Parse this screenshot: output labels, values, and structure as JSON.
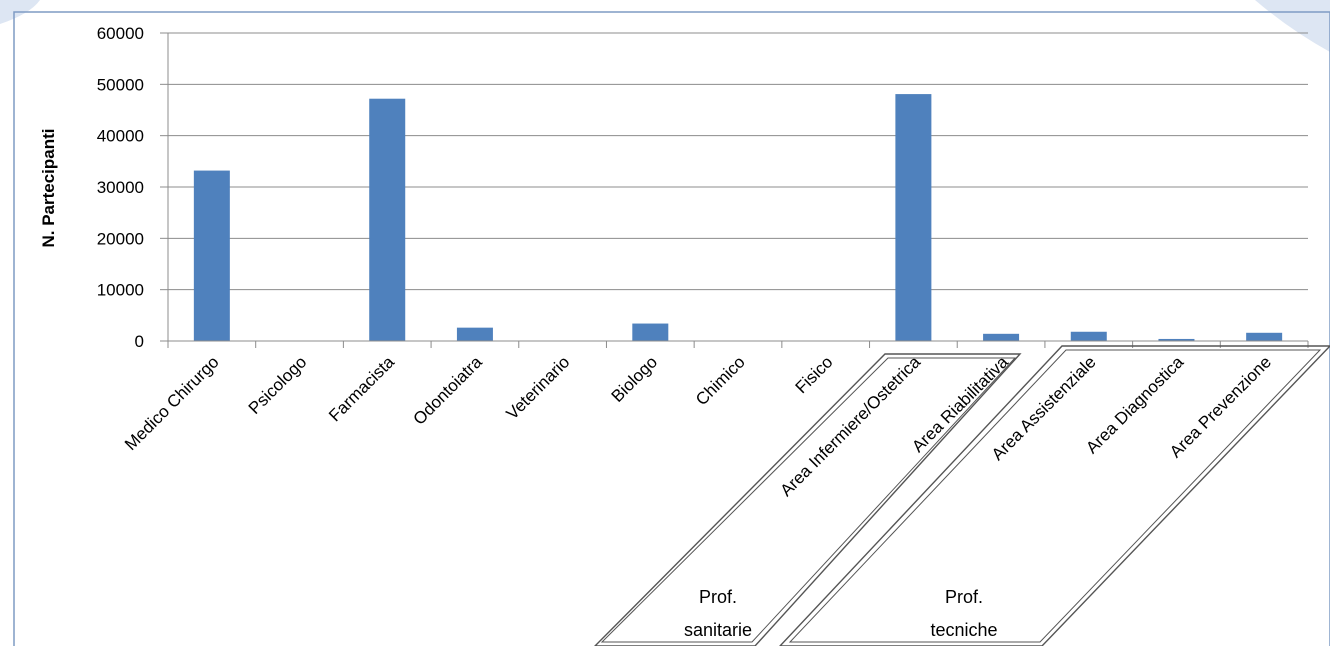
{
  "chart_data": {
    "type": "bar",
    "categories": [
      "Medico Chirurgo",
      "Psicologo",
      "Farmacista",
      "Odontoiatra",
      "Veterinario",
      "Biologo",
      "Chimico",
      "Fisico",
      "Area Infermiere/Ostetrica",
      "Area Riabilitativa",
      "Area Assistenziale",
      "Area Diagnostica",
      "Area Prevenzione"
    ],
    "values": [
      33200,
      0,
      47200,
      2600,
      0,
      3400,
      0,
      0,
      48100,
      1400,
      1800,
      400,
      1600
    ],
    "title": "",
    "xlabel": "",
    "ylabel": "N. Partecipanti",
    "ylim": [
      0,
      60000
    ],
    "yticks": [
      0,
      10000,
      20000,
      30000,
      40000,
      50000,
      60000
    ],
    "grid": true,
    "bar_color": "#4F81BD",
    "groups": [
      {
        "line1": "Prof.",
        "line2": "sanitarie"
      },
      {
        "line1": "Prof.",
        "line2": "tecniche"
      }
    ]
  }
}
